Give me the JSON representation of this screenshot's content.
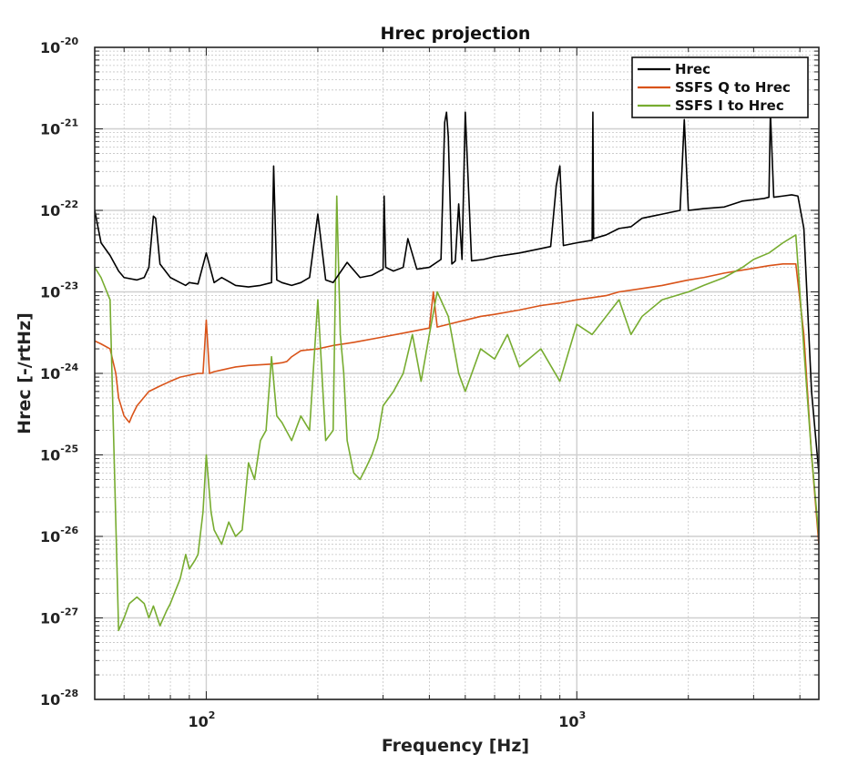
{
  "chart_data": {
    "type": "line",
    "title": "Hrec projection",
    "xlabel": "Frequency [Hz]",
    "ylabel": "Hrec [-/rtHz]",
    "x_scale": "log",
    "y_scale": "log",
    "xlim": [
      50,
      4500
    ],
    "ylim": [
      1e-28,
      1e-20
    ],
    "grid": true,
    "legend_position": "top-right",
    "x_ticks": [
      {
        "value": 100,
        "base": "10",
        "exp": "2"
      },
      {
        "value": 1000,
        "base": "10",
        "exp": "3"
      }
    ],
    "y_ticks": [
      {
        "value": 1e-20,
        "base": "10",
        "exp": "-20"
      },
      {
        "value": 1e-21,
        "base": "10",
        "exp": "-21"
      },
      {
        "value": 1e-22,
        "base": "10",
        "exp": "-22"
      },
      {
        "value": 1e-23,
        "base": "10",
        "exp": "-23"
      },
      {
        "value": 1e-24,
        "base": "10",
        "exp": "-24"
      },
      {
        "value": 1e-25,
        "base": "10",
        "exp": "-25"
      },
      {
        "value": 1e-26,
        "base": "10",
        "exp": "-26"
      },
      {
        "value": 1e-27,
        "base": "10",
        "exp": "-27"
      },
      {
        "value": 1e-28,
        "base": "10",
        "exp": "-28"
      }
    ],
    "series": [
      {
        "name": "Hrec",
        "color": "#000000",
        "x": [
          50,
          52,
          55,
          58,
          60,
          65,
          68,
          70,
          72,
          73,
          75,
          80,
          85,
          88,
          90,
          95,
          100,
          105,
          110,
          120,
          130,
          140,
          150,
          152,
          155,
          160,
          170,
          180,
          190,
          200,
          210,
          220,
          240,
          260,
          280,
          300,
          302,
          305,
          320,
          340,
          350,
          370,
          400,
          430,
          440,
          445,
          450,
          460,
          470,
          480,
          490,
          500,
          520,
          560,
          600,
          700,
          800,
          850,
          880,
          900,
          920,
          1000,
          1100,
          1105,
          1110,
          1200,
          1300,
          1400,
          1500,
          1600,
          1700,
          1800,
          1900,
          1950,
          2000,
          2200,
          2500,
          2800,
          3000,
          3200,
          3300,
          3330,
          3400,
          3600,
          3800,
          3950,
          4100,
          4300,
          4500
        ],
        "y": [
          1e-22,
          4e-23,
          2.8e-23,
          1.8e-23,
          1.5e-23,
          1.4e-23,
          1.5e-23,
          2e-23,
          8.5e-23,
          8e-23,
          2.2e-23,
          1.5e-23,
          1.3e-23,
          1.2e-23,
          1.3e-23,
          1.25e-23,
          3e-23,
          1.3e-23,
          1.5e-23,
          1.2e-23,
          1.15e-23,
          1.2e-23,
          1.3e-23,
          3.5e-22,
          1.4e-23,
          1.3e-23,
          1.2e-23,
          1.3e-23,
          1.5e-23,
          9e-23,
          1.4e-23,
          1.3e-23,
          2.3e-23,
          1.5e-23,
          1.6e-23,
          1.9e-23,
          1.5e-22,
          2e-23,
          1.8e-23,
          2e-23,
          4.5e-23,
          1.9e-23,
          2e-23,
          2.5e-23,
          1.2e-21,
          1.6e-21,
          8e-22,
          2.2e-23,
          2.4e-23,
          1.2e-22,
          2.5e-23,
          1.6e-21,
          2.4e-23,
          2.5e-23,
          2.7e-23,
          3e-23,
          3.4e-23,
          3.6e-23,
          2e-22,
          3.5e-22,
          3.7e-23,
          4e-23,
          4.3e-23,
          1.6e-21,
          4.5e-23,
          5e-23,
          6e-23,
          6.3e-23,
          8e-23,
          8.5e-23,
          9e-23,
          9.5e-23,
          1e-22,
          1.3e-21,
          1e-22,
          1.05e-22,
          1.1e-22,
          1.3e-22,
          1.35e-22,
          1.4e-22,
          1.45e-22,
          1.6e-21,
          1.45e-22,
          1.5e-22,
          1.55e-22,
          1.5e-22,
          6e-23,
          6e-25,
          6e-26
        ]
      },
      {
        "name": "SSFS Q to Hrec",
        "color": "#d95319",
        "x": [
          50,
          52,
          55,
          57,
          58,
          60,
          62,
          63,
          65,
          70,
          75,
          80,
          85,
          90,
          95,
          98,
          100,
          102,
          105,
          110,
          120,
          130,
          150,
          160,
          165,
          170,
          180,
          200,
          220,
          250,
          300,
          350,
          400,
          410,
          420,
          450,
          500,
          550,
          600,
          700,
          800,
          900,
          1000,
          1100,
          1200,
          1300,
          1500,
          1700,
          2000,
          2200,
          2500,
          2800,
          3000,
          3300,
          3600,
          3900,
          4100,
          4300,
          4500
        ],
        "y": [
          2.5e-24,
          2.3e-24,
          2e-24,
          1e-24,
          5e-25,
          3e-25,
          2.5e-25,
          3e-25,
          4e-25,
          6e-25,
          7e-25,
          8e-25,
          9e-25,
          9.5e-25,
          1e-24,
          1e-24,
          4.5e-24,
          1e-24,
          1.05e-24,
          1.1e-24,
          1.2e-24,
          1.25e-24,
          1.3e-24,
          1.35e-24,
          1.4e-24,
          1.6e-24,
          1.9e-24,
          2e-24,
          2.2e-24,
          2.4e-24,
          2.8e-24,
          3.2e-24,
          3.6e-24,
          1e-23,
          3.7e-24,
          4e-24,
          4.5e-24,
          5e-24,
          5.3e-24,
          6e-24,
          6.8e-24,
          7.3e-24,
          8e-24,
          8.5e-24,
          9e-24,
          1e-23,
          1.1e-23,
          1.2e-23,
          1.4e-23,
          1.5e-23,
          1.7e-23,
          1.85e-23,
          1.95e-23,
          2.1e-23,
          2.2e-23,
          2.2e-23,
          3e-24,
          1e-25,
          8e-27
        ]
      },
      {
        "name": "SSFS I to Hrec",
        "color": "#77ac30",
        "x": [
          50,
          52,
          55,
          58,
          60,
          62,
          65,
          68,
          70,
          72,
          75,
          78,
          80,
          82,
          85,
          88,
          90,
          93,
          95,
          98,
          100,
          103,
          105,
          110,
          115,
          120,
          125,
          130,
          135,
          140,
          145,
          150,
          155,
          160,
          170,
          180,
          190,
          200,
          210,
          220,
          225,
          230,
          235,
          240,
          250,
          260,
          270,
          280,
          290,
          300,
          320,
          340,
          360,
          380,
          400,
          420,
          450,
          480,
          500,
          550,
          600,
          650,
          700,
          800,
          900,
          1000,
          1100,
          1200,
          1300,
          1400,
          1500,
          1700,
          2000,
          2200,
          2500,
          2800,
          3000,
          3300,
          3600,
          3900,
          4100,
          4300,
          4500
        ],
        "y": [
          2e-23,
          1.5e-23,
          8e-24,
          7e-28,
          1e-27,
          1.5e-27,
          1.8e-27,
          1.5e-27,
          1e-27,
          1.4e-27,
          8e-28,
          1.2e-27,
          1.5e-27,
          2e-27,
          3e-27,
          6e-27,
          4e-27,
          5e-27,
          6e-27,
          2e-26,
          1e-25,
          2e-26,
          1.2e-26,
          8e-27,
          1.5e-26,
          1e-26,
          1.2e-26,
          8e-26,
          5e-26,
          1.5e-25,
          2e-25,
          1.6e-24,
          3e-25,
          2.5e-25,
          1.5e-25,
          3e-25,
          2e-25,
          8e-24,
          1.5e-25,
          2e-25,
          1.5e-22,
          3e-24,
          1e-24,
          1.5e-25,
          6e-26,
          5e-26,
          7e-26,
          1e-25,
          1.6e-25,
          4e-25,
          6e-25,
          1e-24,
          3e-24,
          8e-25,
          3e-24,
          1e-23,
          5e-24,
          1e-24,
          6e-25,
          2e-24,
          1.5e-24,
          3e-24,
          1.2e-24,
          2e-24,
          8e-25,
          4e-24,
          3e-24,
          5e-24,
          8e-24,
          3e-24,
          5e-24,
          8e-24,
          1e-23,
          1.2e-23,
          1.5e-23,
          2e-23,
          2.5e-23,
          3e-23,
          4e-23,
          5e-23,
          2e-24,
          1e-25,
          1e-26
        ]
      }
    ]
  }
}
